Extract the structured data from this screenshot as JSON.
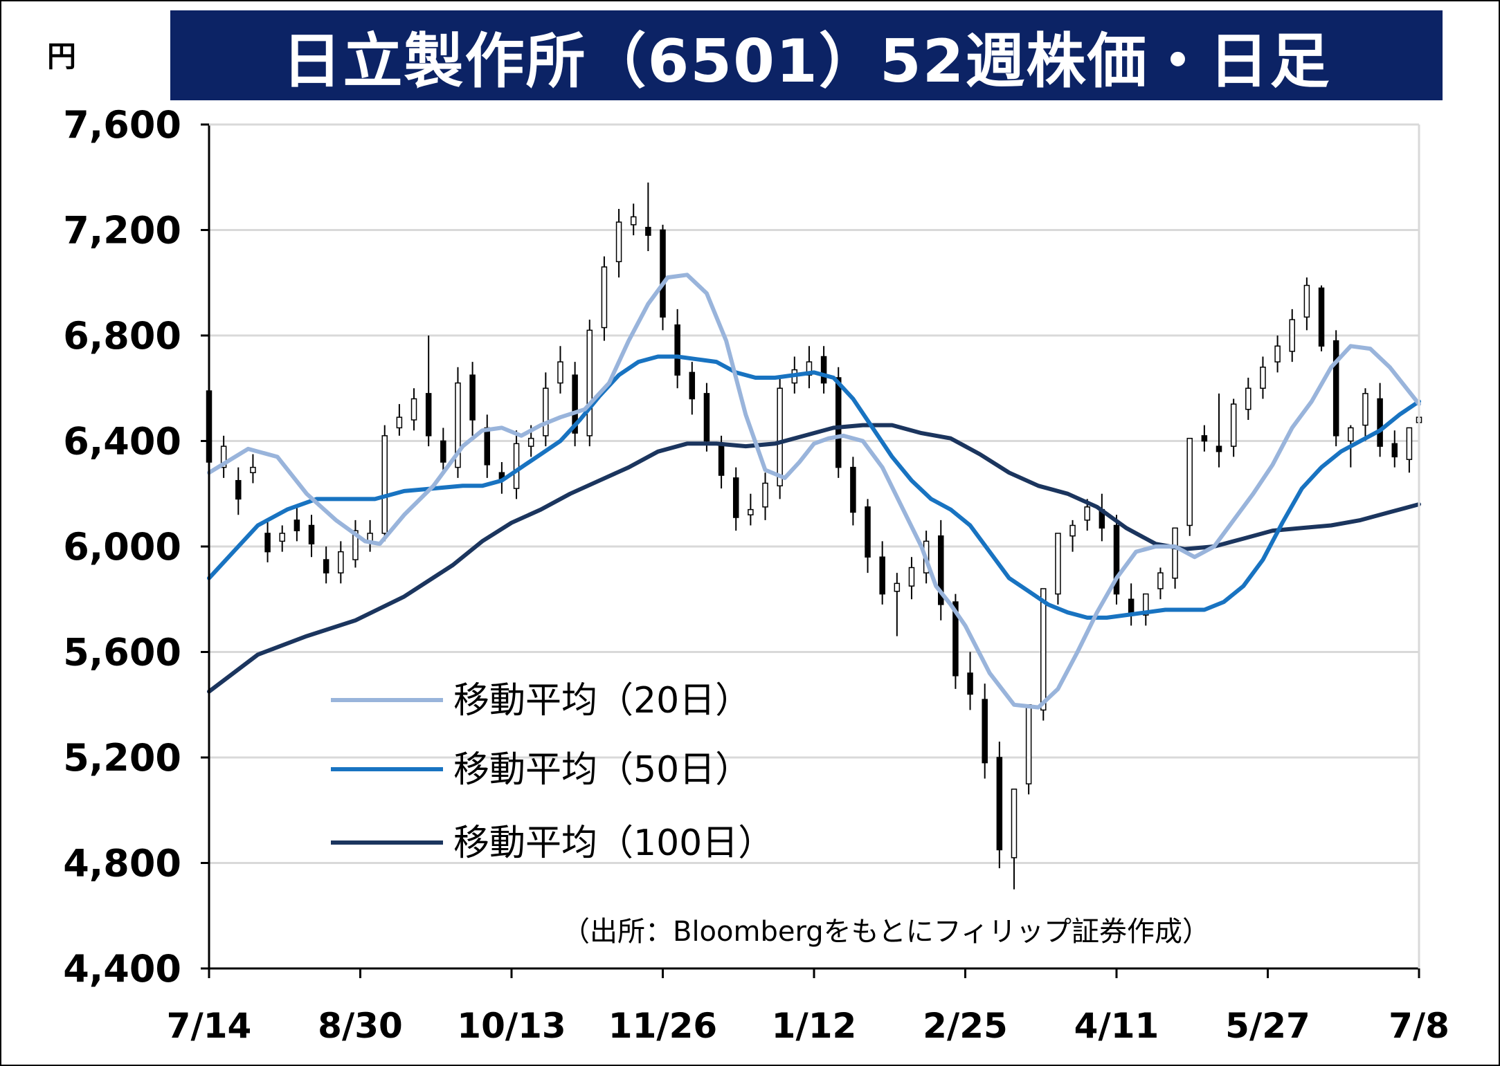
{
  "title": "日立製作所（6501）52週株価・日足",
  "unit_label": "円",
  "source_note": "（出所：Bloombergをもとにフィリップ証券作成）",
  "colors": {
    "title_bg": "#0c2365",
    "ma20": "#99b4db",
    "ma50": "#1873c1",
    "ma100": "#1b355e",
    "candle": "#000000",
    "grid": "#d9d9d9"
  },
  "chart_data": {
    "type": "line",
    "title": "日立製作所（6501）52週株価・日足",
    "ylabel": "円",
    "ylim": [
      4400,
      7600
    ],
    "yticks": [
      4400,
      4800,
      5200,
      5600,
      6000,
      6400,
      6800,
      7200,
      7600
    ],
    "ytick_labels": [
      "4,400",
      "4,800",
      "5,200",
      "5,600",
      "6,000",
      "6,400",
      "6,800",
      "7,200",
      "7,600"
    ],
    "xlim": [
      0,
      248
    ],
    "xticks": [
      0,
      31,
      62,
      93,
      124,
      155,
      186,
      217,
      248
    ],
    "xtick_labels": [
      "7/14",
      "8/30",
      "10/13",
      "11/26",
      "1/12",
      "2/25",
      "4/11",
      "5/27",
      "7/8"
    ],
    "grid": true,
    "legend_position": "lower-left",
    "legend": [
      {
        "key": "ma20",
        "label": "移動平均（20日）"
      },
      {
        "key": "ma50",
        "label": "移動平均（50日）"
      },
      {
        "key": "ma100",
        "label": "移動平均（100日）"
      }
    ],
    "series": [
      {
        "name": "移動平均（20日）",
        "key": "ma20",
        "x": [
          0,
          8,
          14,
          20,
          26,
          32,
          35,
          40,
          46,
          52,
          56,
          60,
          64,
          68,
          72,
          77,
          82,
          86,
          90,
          94,
          98,
          102,
          106,
          110,
          114,
          118,
          121,
          124,
          127,
          130,
          134,
          138,
          142,
          146,
          149,
          152,
          155,
          160,
          165,
          170,
          174,
          178,
          182,
          186,
          190,
          194,
          198,
          202,
          206,
          210,
          214,
          218,
          222,
          226,
          230,
          234,
          238,
          242,
          248
        ],
        "y": [
          6280,
          6370,
          6340,
          6200,
          6100,
          6020,
          6010,
          6120,
          6230,
          6380,
          6440,
          6450,
          6420,
          6460,
          6490,
          6520,
          6620,
          6780,
          6920,
          7020,
          7030,
          6960,
          6780,
          6500,
          6290,
          6260,
          6320,
          6390,
          6410,
          6420,
          6400,
          6300,
          6150,
          6000,
          5850,
          5780,
          5700,
          5520,
          5400,
          5390,
          5460,
          5600,
          5750,
          5880,
          5980,
          6000,
          6000,
          5960,
          6000,
          6100,
          6200,
          6310,
          6450,
          6550,
          6680,
          6760,
          6750,
          6680,
          6540
        ]
      },
      {
        "name": "移動平均（50日）",
        "key": "ma50",
        "x": [
          0,
          5,
          10,
          16,
          22,
          28,
          34,
          40,
          46,
          52,
          56,
          60,
          64,
          68,
          72,
          76,
          80,
          84,
          88,
          92,
          96,
          100,
          104,
          108,
          112,
          116,
          120,
          124,
          128,
          132,
          136,
          140,
          144,
          148,
          152,
          156,
          160,
          164,
          168,
          172,
          176,
          180,
          184,
          188,
          192,
          196,
          200,
          204,
          208,
          212,
          216,
          220,
          224,
          228,
          232,
          236,
          240,
          244,
          248
        ],
        "y": [
          5880,
          5980,
          6080,
          6140,
          6180,
          6180,
          6180,
          6210,
          6220,
          6230,
          6230,
          6250,
          6300,
          6350,
          6400,
          6480,
          6570,
          6650,
          6700,
          6720,
          6720,
          6710,
          6700,
          6660,
          6640,
          6640,
          6650,
          6660,
          6640,
          6560,
          6450,
          6340,
          6250,
          6180,
          6140,
          6080,
          5980,
          5880,
          5830,
          5780,
          5750,
          5730,
          5730,
          5740,
          5750,
          5760,
          5760,
          5760,
          5790,
          5850,
          5950,
          6090,
          6220,
          6300,
          6360,
          6400,
          6440,
          6500,
          6550
        ]
      },
      {
        "name": "移動平均（100日）",
        "key": "ma100",
        "x": [
          0,
          10,
          20,
          30,
          40,
          50,
          56,
          62,
          68,
          74,
          80,
          86,
          92,
          98,
          104,
          110,
          116,
          122,
          128,
          134,
          140,
          146,
          152,
          158,
          164,
          170,
          176,
          182,
          188,
          194,
          200,
          206,
          212,
          218,
          224,
          230,
          236,
          242,
          248
        ],
        "y": [
          5450,
          5590,
          5660,
          5720,
          5810,
          5930,
          6020,
          6090,
          6140,
          6200,
          6250,
          6300,
          6360,
          6390,
          6390,
          6380,
          6390,
          6420,
          6450,
          6460,
          6460,
          6430,
          6410,
          6350,
          6280,
          6230,
          6200,
          6150,
          6070,
          6010,
          5990,
          6000,
          6030,
          6060,
          6070,
          6080,
          6100,
          6130,
          6160
        ]
      },
      {
        "name": "",
        "key": "candles",
        "type": "candlestick",
        "x": [
          0,
          3,
          6,
          9,
          12,
          15,
          18,
          21,
          24,
          27,
          30,
          33,
          36,
          39,
          42,
          45,
          48,
          51,
          54,
          57,
          60,
          63,
          66,
          69,
          72,
          75,
          78,
          81,
          84,
          87,
          90,
          93,
          96,
          99,
          102,
          105,
          108,
          111,
          114,
          117,
          120,
          123,
          126,
          129,
          132,
          135,
          138,
          141,
          144,
          147,
          150,
          153,
          156,
          159,
          162,
          165,
          168,
          171,
          174,
          177,
          180,
          183,
          186,
          189,
          192,
          195,
          198,
          201,
          204,
          207,
          210,
          213,
          216,
          219,
          222,
          225,
          228,
          231,
          234,
          237,
          240,
          243,
          246,
          248
        ],
        "open": [
          6590,
          6300,
          6250,
          6280,
          6050,
          6020,
          6100,
          6080,
          5950,
          5900,
          5950,
          6020,
          6050,
          6450,
          6480,
          6580,
          6400,
          6300,
          6650,
          6450,
          6280,
          6220,
          6380,
          6420,
          6620,
          6650,
          6420,
          6830,
          7080,
          7220,
          7210,
          7200,
          6840,
          6660,
          6580,
          6380,
          6260,
          6120,
          6150,
          6230,
          6620,
          6650,
          6720,
          6640,
          6300,
          6150,
          5960,
          5830,
          5850,
          5900,
          6040,
          5790,
          5520,
          5420,
          5200,
          4820,
          5100,
          5380,
          5820,
          6040,
          6100,
          6140,
          6080,
          5800,
          5740,
          5840,
          5880,
          6080,
          6420,
          6380,
          6380,
          6520,
          6600,
          6700,
          6740,
          6870,
          6980,
          6780,
          6400,
          6460,
          6560,
          6390,
          6330,
          6470
        ],
        "close": [
          6320,
          6380,
          6180,
          6300,
          5980,
          6050,
          6060,
          6010,
          5900,
          5980,
          6060,
          6050,
          6420,
          6490,
          6560,
          6420,
          6320,
          6620,
          6480,
          6310,
          6250,
          6390,
          6410,
          6600,
          6700,
          6430,
          6820,
          7060,
          7230,
          7250,
          7180,
          6870,
          6650,
          6560,
          6400,
          6270,
          6110,
          6140,
          6240,
          6600,
          6670,
          6700,
          6620,
          6300,
          6130,
          5960,
          5820,
          5860,
          5920,
          6020,
          5780,
          5510,
          5440,
          5180,
          4850,
          5080,
          5400,
          5840,
          6050,
          6080,
          6150,
          6070,
          5820,
          5750,
          5820,
          5900,
          6070,
          6410,
          6400,
          6360,
          6540,
          6600,
          6680,
          6760,
          6860,
          6990,
          6760,
          6420,
          6450,
          6580,
          6380,
          6340,
          6450,
          6490
        ]
      },
      {
        "name": "",
        "key": "candle_range",
        "x": [
          0,
          3,
          6,
          9,
          12,
          15,
          18,
          21,
          24,
          27,
          30,
          33,
          36,
          39,
          42,
          45,
          48,
          51,
          54,
          57,
          60,
          63,
          66,
          69,
          72,
          75,
          78,
          81,
          84,
          87,
          90,
          93,
          96,
          99,
          102,
          105,
          108,
          111,
          114,
          117,
          120,
          123,
          126,
          129,
          132,
          135,
          138,
          141,
          144,
          147,
          150,
          153,
          156,
          159,
          162,
          165,
          168,
          171,
          174,
          177,
          180,
          183,
          186,
          189,
          192,
          195,
          198,
          201,
          204,
          207,
          210,
          213,
          216,
          219,
          222,
          225,
          228,
          231,
          234,
          237,
          240,
          243,
          246,
          248
        ],
        "high": [
          6640,
          6420,
          6300,
          6350,
          6100,
          6080,
          6160,
          6120,
          6000,
          6020,
          6100,
          6100,
          6460,
          6540,
          6600,
          6800,
          6450,
          6680,
          6700,
          6500,
          6320,
          6440,
          6460,
          6660,
          6760,
          6700,
          6860,
          7100,
          7280,
          7300,
          7380,
          7220,
          6900,
          6700,
          6620,
          6420,
          6300,
          6200,
          6280,
          6640,
          6720,
          6760,
          6760,
          6680,
          6340,
          6180,
          6020,
          5900,
          5960,
          6060,
          6100,
          5820,
          5600,
          5480,
          5260,
          4900,
          5160,
          5440,
          5880,
          6100,
          6180,
          6200,
          6120,
          5860,
          5800,
          5920,
          5960,
          6120,
          6460,
          6580,
          6560,
          6640,
          6720,
          6800,
          6900,
          7020,
          6990,
          6820,
          6460,
          6600,
          6620,
          6440,
          6380,
          6520
        ],
        "low": [
          6280,
          6260,
          6120,
          6240,
          5940,
          5980,
          6020,
          5960,
          5860,
          5860,
          5920,
          5980,
          6020,
          6420,
          6440,
          6380,
          6280,
          6260,
          6420,
          6260,
          6200,
          6180,
          6340,
          6380,
          6580,
          6380,
          6380,
          6780,
          7020,
          7180,
          7120,
          6820,
          6600,
          6500,
          6360,
          6220,
          6060,
          6080,
          6100,
          6180,
          6580,
          6600,
          6580,
          6260,
          6080,
          5900,
          5780,
          5660,
          5800,
          5860,
          5720,
          5460,
          5380,
          5120,
          4780,
          4700,
          5060,
          5340,
          5780,
          5980,
          6060,
          6020,
          5780,
          5700,
          5700,
          5800,
          5840,
          6040,
          6360,
          6300,
          6340,
          6480,
          6560,
          6660,
          6700,
          6820,
          6740,
          6380,
          6300,
          6400,
          6340,
          6300,
          6280,
          6420
        ]
      }
    ]
  }
}
